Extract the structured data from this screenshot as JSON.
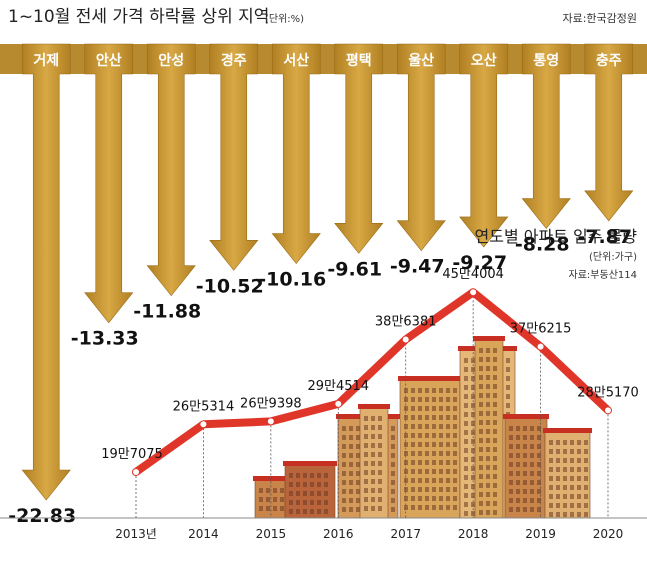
{
  "colors": {
    "arrow": "#c4932c",
    "arrow_dark": "#a8781c",
    "band": "#b5832a",
    "line": "#e0362a",
    "bldg_main": "#d9a55a",
    "bldg_dark": "#8a3a2a",
    "bldg_roof": "#c62f22",
    "panel": "#f2f2f2"
  },
  "chart_data": [
    {
      "type": "bar",
      "title": "1~10월 전세 가격 하락률 상위 지역",
      "unit": "(단위:%)",
      "source": "자료:한국감정원",
      "categories": [
        "거제",
        "안산",
        "안성",
        "경주",
        "서산",
        "평택",
        "울산",
        "오산",
        "통영",
        "충주"
      ],
      "values": [
        -22.83,
        -13.33,
        -11.88,
        -10.52,
        -10.16,
        -9.61,
        -9.47,
        -9.27,
        -8.28,
        -7.87
      ],
      "value_labels": [
        "-22.83",
        "-13.33",
        "-11.88",
        "-10.52",
        "-10.16",
        "-9.61",
        "-9.47",
        "-9.27",
        "-8.28",
        "-7.87"
      ]
    },
    {
      "type": "line",
      "title": "연도별 아파트 입주 물량",
      "unit": "(단위:가구)",
      "source": "자료:부동산114",
      "x": [
        "2013년",
        "2014",
        "2015",
        "2016",
        "2017",
        "2018",
        "2019",
        "2020"
      ],
      "values": [
        197075,
        265314,
        269398,
        294514,
        386381,
        454004,
        376215,
        285170
      ],
      "value_labels": [
        "19만7075",
        "26만5314",
        "26만9398",
        "29만4514",
        "38만6381",
        "45만4004",
        "37만6215",
        "28만5170"
      ]
    }
  ]
}
